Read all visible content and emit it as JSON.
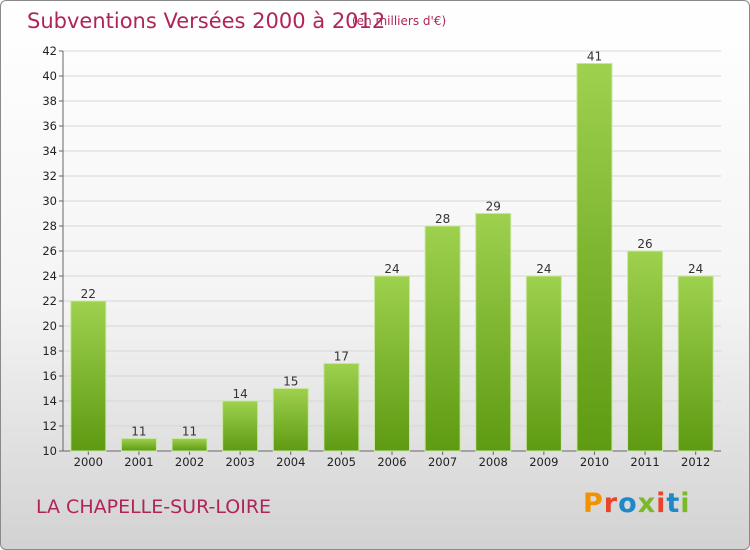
{
  "header": {
    "title": "Subventions Versées 2000 à 2012",
    "subtitle": "(en milliers d'€)"
  },
  "footer": {
    "location": "LA CHAPELLE-SUR-LOIRE",
    "logo_text": "Proxiti"
  },
  "colors": {
    "title": "#b0245a",
    "bar_light": "#9ed14e",
    "bar_dark": "#5e9a12",
    "logo_letters": [
      "#f39200",
      "#e8442a",
      "#1e88c8",
      "#7ab928",
      "#e8442a",
      "#1e88c8",
      "#7ab928"
    ]
  },
  "chart_data": {
    "type": "bar",
    "title": "Subventions Versées 2000 à 2012",
    "subtitle": "(en milliers d'€)",
    "categories": [
      "2000",
      "2001",
      "2002",
      "2003",
      "2004",
      "2005",
      "2006",
      "2007",
      "2008",
      "2009",
      "2010",
      "2011",
      "2012"
    ],
    "values": [
      22,
      11,
      11,
      14,
      15,
      17,
      24,
      28,
      29,
      24,
      41,
      26,
      24
    ],
    "ylim": [
      10,
      42
    ],
    "yticks": [
      10,
      12,
      14,
      16,
      18,
      20,
      22,
      24,
      26,
      28,
      30,
      32,
      34,
      36,
      38,
      40,
      42
    ],
    "ytick_labels": [
      "10",
      "12",
      "14",
      "16",
      "18",
      "20",
      "22",
      "24",
      "26",
      "28",
      "30",
      "32",
      "34",
      "36",
      "38",
      "40",
      "42"
    ],
    "grid": "horizontal",
    "legend": "none",
    "data_labels": true
  }
}
